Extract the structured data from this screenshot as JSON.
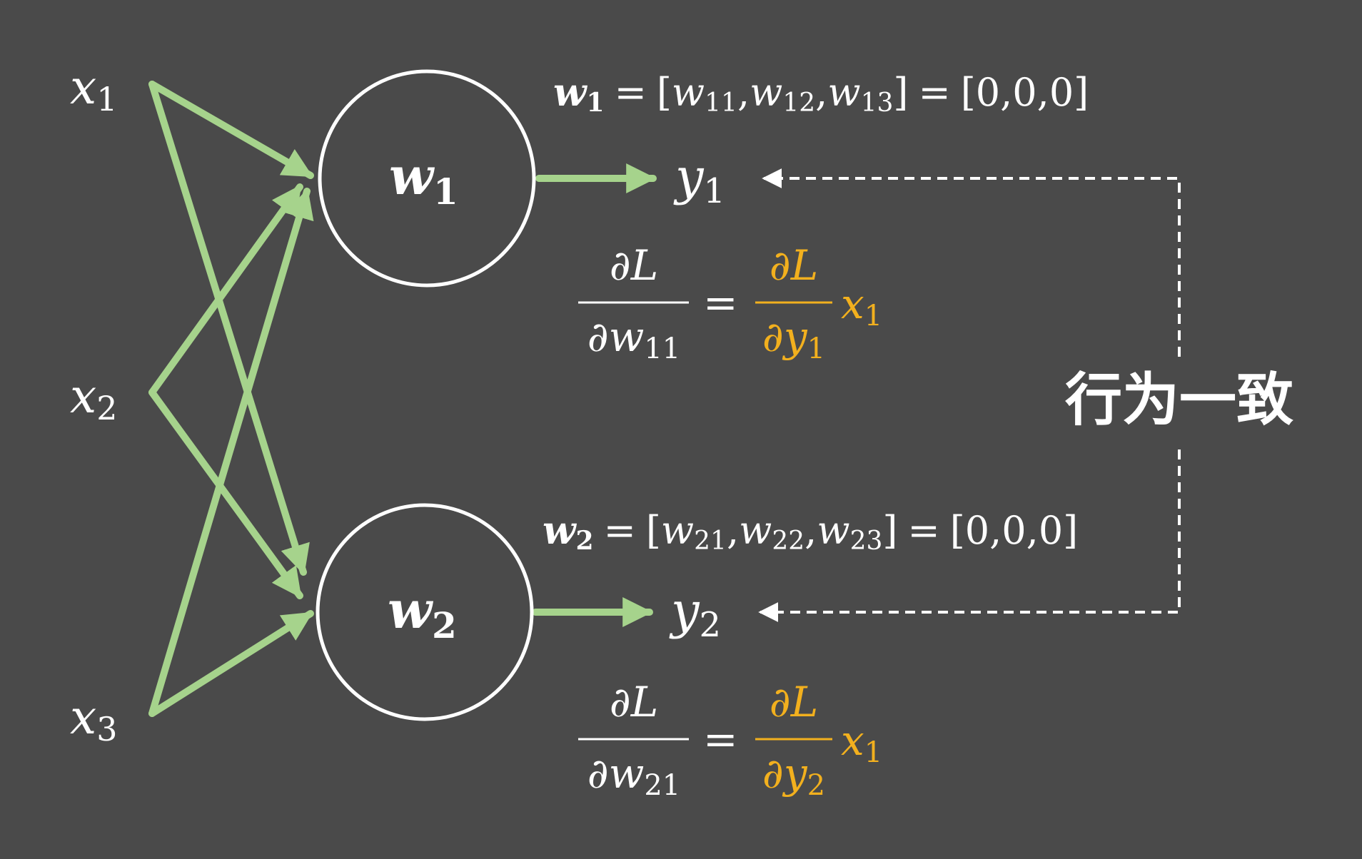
{
  "inputs": {
    "x1": {
      "base": "x",
      "sub": "1"
    },
    "x2": {
      "base": "x",
      "sub": "2"
    },
    "x3": {
      "base": "x",
      "sub": "3"
    }
  },
  "neurons": {
    "n1": {
      "base": "w",
      "sub": "1"
    },
    "n2": {
      "base": "w",
      "sub": "2"
    }
  },
  "outputs": {
    "y1": {
      "base": "y",
      "sub": "1"
    },
    "y2": {
      "base": "y",
      "sub": "2"
    }
  },
  "weight_eq1": {
    "lhs_base": "w",
    "lhs_sub": "1",
    "eq": "=",
    "open": "[",
    "t1_base": "w",
    "t1_sub": "11",
    "comma1": ",",
    "t2_base": "w",
    "t2_sub": "12",
    "comma2": ",",
    "t3_base": "w",
    "t3_sub": "13",
    "close": "]",
    "eq2": "=",
    "value": "[0,0,0]"
  },
  "weight_eq2": {
    "lhs_base": "w",
    "lhs_sub": "2",
    "eq": "=",
    "open": "[",
    "t1_base": "w",
    "t1_sub": "21",
    "comma1": ",",
    "t2_base": "w",
    "t2_sub": "22",
    "comma2": ",",
    "t3_base": "w",
    "t3_sub": "23",
    "close": "]",
    "eq2": "=",
    "value": "[0,0,0]"
  },
  "grad1": {
    "num": "∂L",
    "den_base": "∂w",
    "den_sub": "11",
    "eq": "=",
    "rnum": "∂L",
    "rden_base": "∂y",
    "rden_sub": "1",
    "mult_base": "x",
    "mult_sub": "1"
  },
  "grad2": {
    "num": "∂L",
    "den_base": "∂w",
    "den_sub": "21",
    "eq": "=",
    "rnum": "∂L",
    "rden_base": "∂y",
    "rden_sub": "2",
    "mult_base": "x",
    "mult_sub": "1"
  },
  "side_label": "行为一致",
  "colors": {
    "background": "#4a4a4a",
    "arrow": "#a6d38c",
    "text": "#ffffff",
    "highlight": "#f2b01e",
    "dashed": "#ffffff"
  }
}
